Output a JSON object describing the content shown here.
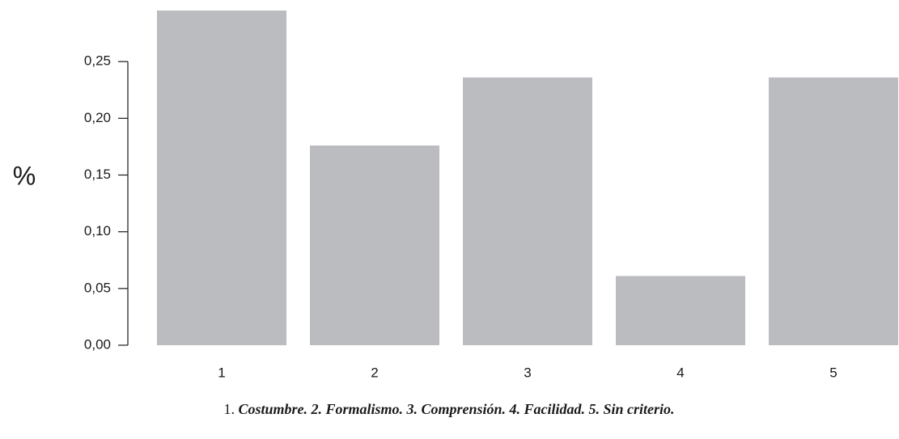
{
  "chart_data": {
    "type": "bar",
    "y_label": "%",
    "categories": [
      "1",
      "2",
      "3",
      "4",
      "5"
    ],
    "values": [
      0.295,
      0.176,
      0.236,
      0.061,
      0.236
    ],
    "color": "#bbbcc0",
    "ylim": [
      0,
      0.3
    ],
    "yticks": [
      {
        "value": 0,
        "label": "0,00"
      },
      {
        "value": 0.05,
        "label": "0,05"
      },
      {
        "value": 0.1,
        "label": "0,10"
      },
      {
        "value": 0.15,
        "label": "0,15"
      },
      {
        "value": 0.2,
        "label": "0,20"
      },
      {
        "value": 0.25,
        "label": "0,25"
      }
    ],
    "caption": [
      "1.",
      "Costumbre. 2. Formalismo. 3. Comprensión. 4. Facilidad. 5. Sin criterio."
    ]
  }
}
